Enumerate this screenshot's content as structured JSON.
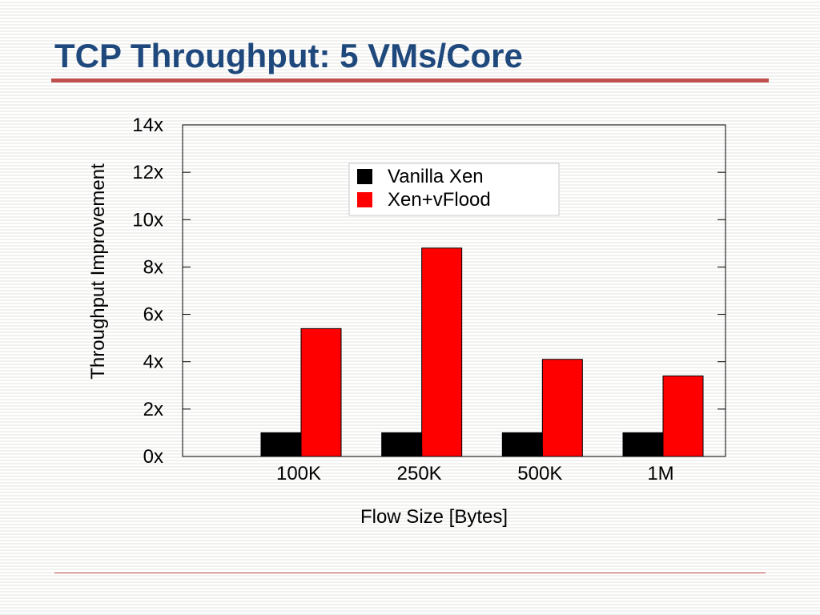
{
  "slide": {
    "title": "TCP Throughput: 5 VMs/Core"
  },
  "colors": {
    "title": "#1f497d",
    "title_rule": "#c0504d",
    "footer_rule": "#c0504d",
    "vanilla_xen": "#000000",
    "xen_vflood": "#ff0000",
    "axis": "#000000"
  },
  "chart_data": {
    "type": "bar",
    "xlabel": "Flow Size [Bytes]",
    "ylabel": "Throughput Improvement",
    "categories": [
      "100K",
      "250K",
      "500K",
      "1M"
    ],
    "series": [
      {
        "name": "Vanilla Xen",
        "color": "#000000",
        "values": [
          1,
          1,
          1,
          1
        ]
      },
      {
        "name": "Xen+vFlood",
        "color": "#ff0000",
        "values": [
          5.4,
          8.8,
          4.1,
          3.4
        ]
      }
    ],
    "ylim": [
      0,
      14
    ],
    "yticks": [
      0,
      2,
      4,
      6,
      8,
      10,
      12,
      14
    ],
    "ytick_labels": [
      "0x",
      "2x",
      "4x",
      "6x",
      "8x",
      "10x",
      "12x",
      "14x"
    ],
    "grid": false,
    "legend_position": "top-right"
  }
}
